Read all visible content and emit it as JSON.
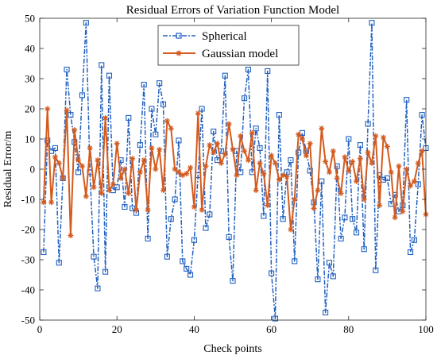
{
  "chart_data": {
    "type": "line",
    "title": "Residual Errors of Variation Function Model",
    "xlabel": "Check points",
    "ylabel": "Residual Error/m",
    "xlim": [
      0,
      100
    ],
    "ylim": [
      -50,
      50
    ],
    "x_ticks": [
      0,
      20,
      40,
      60,
      80,
      100
    ],
    "y_ticks": [
      -50,
      -40,
      -30,
      -20,
      -10,
      0,
      10,
      20,
      30,
      40,
      50
    ],
    "x_tick_labels": [
      "0",
      "20",
      "40",
      "60",
      "80",
      "100"
    ],
    "y_tick_labels": [
      "-50",
      "-40",
      "-30",
      "-20",
      "-10",
      "0",
      "10",
      "20",
      "30",
      "40",
      "50"
    ],
    "grid": false,
    "legend_position": "top-center",
    "x": [
      1,
      2,
      3,
      4,
      5,
      6,
      7,
      8,
      9,
      10,
      11,
      12,
      13,
      14,
      15,
      16,
      17,
      18,
      19,
      20,
      21,
      22,
      23,
      24,
      25,
      26,
      27,
      28,
      29,
      30,
      31,
      32,
      33,
      34,
      35,
      36,
      37,
      38,
      39,
      40,
      41,
      42,
      43,
      44,
      45,
      46,
      47,
      48,
      49,
      50,
      51,
      52,
      53,
      54,
      55,
      56,
      57,
      58,
      59,
      60,
      61,
      62,
      63,
      64,
      65,
      66,
      67,
      68,
      69,
      70,
      71,
      72,
      73,
      74,
      75,
      76,
      77,
      78,
      79,
      80,
      81,
      82,
      83,
      84,
      85,
      86,
      87,
      88,
      89,
      90,
      91,
      92,
      93,
      94,
      95,
      96,
      97,
      98,
      99,
      100
    ],
    "series": [
      {
        "name": "Spherical",
        "color": "#2060c0",
        "line_style": "dash-dot",
        "marker": "square",
        "values": [
          -27.5,
          9.5,
          6,
          7,
          -31,
          -3,
          33,
          18,
          9,
          -1,
          24.5,
          48.5,
          -1,
          -29,
          -39.5,
          34.5,
          -34,
          31,
          -7,
          -6,
          3,
          -12.5,
          17,
          -13,
          -14.5,
          8,
          28,
          -23,
          20,
          11.5,
          28.5,
          21.5,
          -29,
          -16.5,
          -10,
          9.5,
          -30.5,
          -33,
          -35,
          -23.5,
          -2,
          20,
          -19.5,
          -15,
          12.5,
          3,
          6,
          31,
          -22.5,
          -37,
          6,
          -1,
          23.5,
          33,
          -1,
          13.5,
          7,
          -15.5,
          32.5,
          -34.5,
          -49.5,
          18,
          -16.5,
          -1,
          3,
          -30.5,
          5.5,
          12,
          6,
          -0.5,
          -11,
          -36.5,
          -4,
          -47.5,
          -31,
          -35.5,
          1,
          -23,
          -16,
          10,
          -16.5,
          -21,
          8,
          -26.5,
          15,
          48.5,
          -33.5,
          -2,
          -3.5,
          -3,
          -11.5,
          -8.5,
          -14,
          -12,
          23,
          -27.5,
          -23.5,
          -5,
          18,
          7
        ]
      },
      {
        "name": "Gaussian model",
        "color": "#d45b1e",
        "line_style": "solid",
        "marker": "asterisk",
        "values": [
          -11,
          20,
          -11,
          4,
          2,
          -3,
          19.5,
          -22,
          13,
          3,
          1,
          -9,
          7,
          -6,
          3,
          -8,
          17,
          -7,
          -5,
          8.5,
          -3,
          0,
          -8,
          3.5,
          -13.5,
          -1,
          3,
          -13.5,
          7,
          0,
          6.5,
          -7,
          16,
          13.5,
          0,
          -1,
          -2,
          -1.5,
          0.5,
          -12.5,
          18.5,
          -13.5,
          1,
          8,
          5.5,
          8.5,
          2,
          5,
          15,
          6.5,
          -2,
          11,
          6,
          3,
          12,
          -7,
          2,
          -1.5,
          -12,
          4.5,
          2,
          -3.5,
          -2,
          -2.5,
          -20,
          -10,
          11.5,
          10,
          4.5,
          8.5,
          -13,
          -7,
          13.5,
          2.5,
          -1,
          6,
          -3,
          -8,
          4,
          -0.5,
          2.5,
          -4,
          3.5,
          -10,
          5.5,
          2,
          11,
          -12,
          10.5,
          7.5,
          -1,
          -16,
          1,
          -14,
          0,
          -5.5,
          -4,
          2,
          6,
          -15
        ]
      }
    ]
  }
}
